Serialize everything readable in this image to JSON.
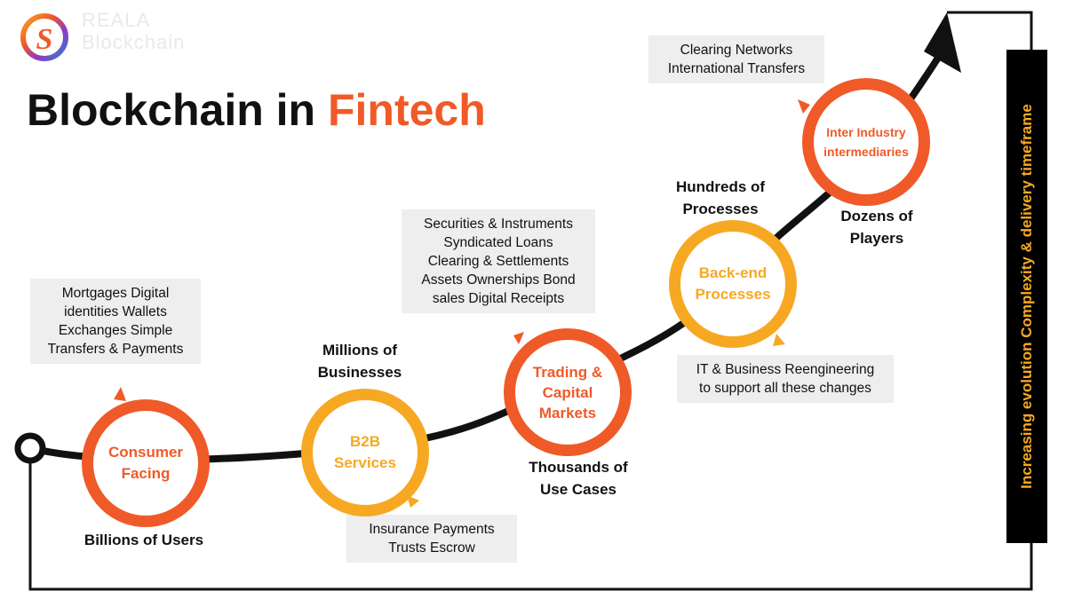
{
  "logo": {
    "line1": "REALA",
    "line2": "Blockchain"
  },
  "title": {
    "main": "Blockchain in",
    "accent": "Fintech"
  },
  "colors": {
    "orange": "#ef5a28",
    "yellow": "#f7a823",
    "note_bg": "#eeeeee",
    "curve": "#111111"
  },
  "stages": [
    {
      "label": [
        "Consumer",
        "Facing"
      ],
      "color": "orange"
    },
    {
      "label": [
        "B2B",
        "Services"
      ],
      "color": "yellow"
    },
    {
      "label": [
        "Trading &",
        "Capital",
        "Markets"
      ],
      "color": "orange"
    },
    {
      "label": [
        "Back-end",
        "Processes"
      ],
      "color": "yellow"
    },
    {
      "label": [
        "Inter Industry",
        "intermediaries"
      ],
      "color": "orange"
    }
  ],
  "metrics": [
    [
      "Billions of Users"
    ],
    [
      "Millions of",
      "Businesses"
    ],
    [
      "Thousands of",
      "Use Cases"
    ],
    [
      "Hundreds of",
      "Processes"
    ],
    [
      "Dozens of",
      "Players"
    ]
  ],
  "notes": [
    [
      "Mortgages Digital",
      "identities Wallets",
      "Exchanges Simple",
      "Transfers & Payments"
    ],
    [
      "Insurance Payments",
      "Trusts Escrow"
    ],
    [
      "Securities & Instruments",
      "Syndicated Loans",
      "Clearing & Settlements",
      "Assets Ownerships Bond",
      "sales Digital Receipts"
    ],
    [
      "IT & Business Reengineering",
      "to support all these changes"
    ],
    [
      "Clearing Networks",
      "International Transfers"
    ]
  ],
  "side_label": "Increasing evolution Complexity & delivery timeframe"
}
